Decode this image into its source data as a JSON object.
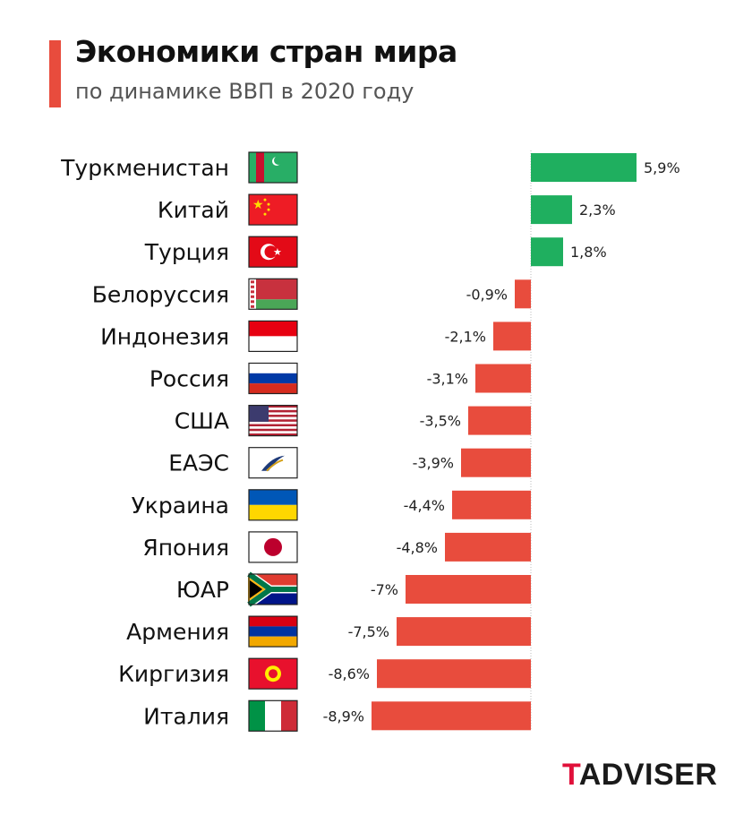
{
  "title": "Экономики стран мира",
  "subtitle": "по динамике ВВП в 2020 году",
  "logo": {
    "first": "T",
    "rest": "ADVISER"
  },
  "colors": {
    "positive": "#1faf5f",
    "negative": "#e84c3d",
    "accent": "#e84c3d"
  },
  "chart_data": {
    "type": "bar",
    "orientation": "horizontal",
    "title": "Экономики стран мира",
    "subtitle": "по динамике ВВП в 2020 году",
    "unit": "%",
    "categories": [
      "Туркменистан",
      "Китай",
      "Турция",
      "Белоруссия",
      "Индонезия",
      "Россия",
      "США",
      "ЕАЭС",
      "Украина",
      "Япония",
      "ЮАР",
      "Армения",
      "Киргизия",
      "Италия"
    ],
    "values": [
      5.9,
      2.3,
      1.8,
      -0.9,
      -2.1,
      -3.1,
      -3.5,
      -3.9,
      -4.4,
      -4.8,
      -7,
      -7.5,
      -8.6,
      -8.9
    ],
    "value_labels": [
      "5,9%",
      "2,3%",
      "1,8%",
      "-0,9%",
      "-2,1%",
      "-3,1%",
      "-3,5%",
      "-3,9%",
      "-4,4%",
      "-4,8%",
      "-7%",
      "-7,5%",
      "-8,6%",
      "-8,9%"
    ],
    "flags": [
      "turkmenistan-flag-icon",
      "china-flag-icon",
      "turkey-flag-icon",
      "belarus-flag-icon",
      "indonesia-flag-icon",
      "russia-flag-icon",
      "usa-flag-icon",
      "eaeu-flag-icon",
      "ukraine-flag-icon",
      "japan-flag-icon",
      "south-africa-flag-icon",
      "armenia-flag-icon",
      "kyrgyzstan-flag-icon",
      "italy-flag-icon"
    ],
    "xlim": [
      -8.9,
      5.9
    ],
    "grid": false
  }
}
